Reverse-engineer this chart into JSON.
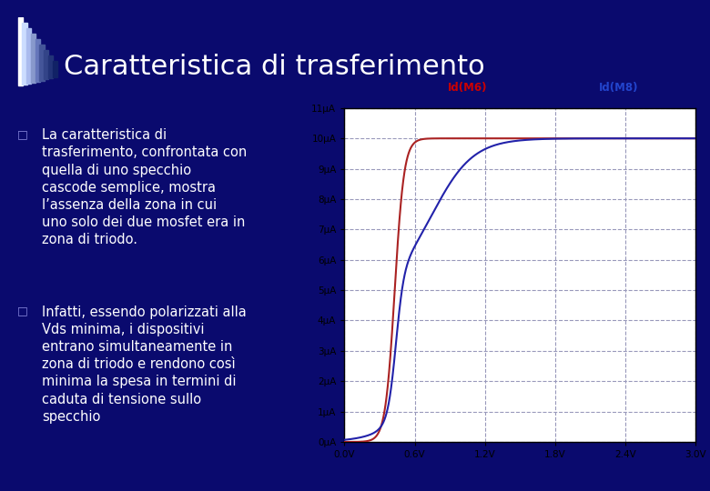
{
  "title": "Caratteristica di trasferimento",
  "bg_color": "#0a0a6e",
  "title_color": "#ffffff",
  "title_fontsize": 22,
  "header_line_color": "#aaaaff",
  "bullet1": "La caratteristica di\ntrasferimento, confrontata con\nquella di uno specchio\ncascode semplice, mostra\nl’assenza della zona in cui\nuno solo dei due mosfet era in\nzona di triodo.",
  "bullet2": "Infatti, essendo polarizzati alla\nVds minima, i dispositivi\nentrano simultaneamente in\nzona di triodo e rendono così\nminima la spesa in termini di\ncaduta di tensione sullo\nspecchio",
  "text_color": "#ffffff",
  "text_fontsize": 10.5,
  "plot_bg": "#ffffff",
  "grid_color": "#9999bb",
  "grid_style": "--",
  "xlabel_vals": [
    0.0,
    0.6,
    1.2,
    1.8,
    2.4,
    3.0
  ],
  "xlabel_labels": [
    "0.0V",
    "0.6V",
    "1.2V",
    "1.8V",
    "2.4V",
    "3.0V"
  ],
  "ylabel_vals": [
    0,
    1,
    2,
    3,
    4,
    5,
    6,
    7,
    8,
    9,
    10,
    11
  ],
  "ylabel_labels": [
    "0μA",
    "1μA",
    "2μA",
    "3μA",
    "4μA",
    "5μA",
    "6μA",
    "7μA",
    "8μA",
    "9μA",
    "10μA",
    "11μA"
  ],
  "xlim": [
    0.0,
    3.0
  ],
  "ylim": [
    0,
    11
  ],
  "curve1_color": "#aa2222",
  "curve2_color": "#2222aa",
  "curve1_label": "Id(M6)",
  "curve2_label": "Id(M8)",
  "label1_color": "#cc0000",
  "label2_color": "#2244cc"
}
